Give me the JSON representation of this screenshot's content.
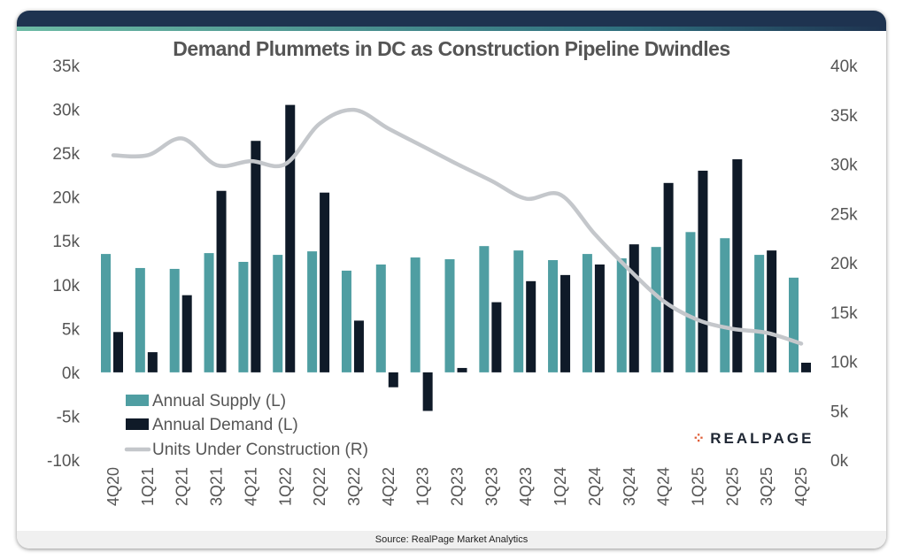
{
  "title": "Demand Plummets in DC as Construction Pipeline Dwindles",
  "source": "Source: RealPage Market Analytics",
  "logo": "REALPAGE",
  "colors": {
    "supply": "#4f9ea2",
    "demand": "#0f1a28",
    "line": "#c4c7cb",
    "header": "#1e3350"
  },
  "chart_data": {
    "type": "bar",
    "title": "Demand Plummets in DC as Construction Pipeline Dwindles",
    "categories": [
      "4Q20",
      "1Q21",
      "2Q21",
      "3Q21",
      "4Q21",
      "1Q22",
      "2Q22",
      "3Q22",
      "4Q22",
      "1Q23",
      "2Q23",
      "3Q23",
      "4Q23",
      "1Q24",
      "2Q24",
      "3Q24",
      "4Q24",
      "1Q25",
      "2Q25",
      "3Q25",
      "4Q25"
    ],
    "series": [
      {
        "name": "Annual Supply (L)",
        "type": "bar",
        "axis": "left",
        "values": [
          13.5,
          11.9,
          11.8,
          13.6,
          12.6,
          13.4,
          13.8,
          11.6,
          12.3,
          13.1,
          12.9,
          14.4,
          13.9,
          12.8,
          13.5,
          13.0,
          14.3,
          16.0,
          15.3,
          13.4,
          10.8
        ]
      },
      {
        "name": "Annual Demand (L)",
        "type": "bar",
        "axis": "left",
        "values": [
          4.6,
          2.3,
          8.8,
          20.7,
          26.4,
          30.5,
          20.5,
          5.9,
          -1.7,
          -4.4,
          0.5,
          8.0,
          10.4,
          11.1,
          12.3,
          14.6,
          21.6,
          23.0,
          24.3,
          13.9,
          1.1
        ]
      },
      {
        "name": "Units Under Construction (R)",
        "type": "line",
        "axis": "right",
        "values": [
          30.9,
          30.9,
          32.6,
          29.9,
          30.3,
          30.0,
          34.1,
          35.5,
          33.6,
          31.8,
          30.0,
          28.3,
          26.5,
          26.9,
          22.9,
          19.3,
          16.1,
          14.2,
          13.3,
          12.9,
          11.8
        ]
      }
    ],
    "units": "thousands",
    "ylim_left": [
      -10,
      35
    ],
    "ylim_right": [
      0,
      40
    ],
    "yticks_left": [
      "-10k",
      "-5k",
      "0k",
      "5k",
      "10k",
      "15k",
      "20k",
      "25k",
      "30k",
      "35k"
    ],
    "yticks_right": [
      "0k",
      "5k",
      "10k",
      "15k",
      "20k",
      "25k",
      "30k",
      "35k",
      "40k"
    ],
    "grid": false,
    "legend": "bottom-left"
  }
}
